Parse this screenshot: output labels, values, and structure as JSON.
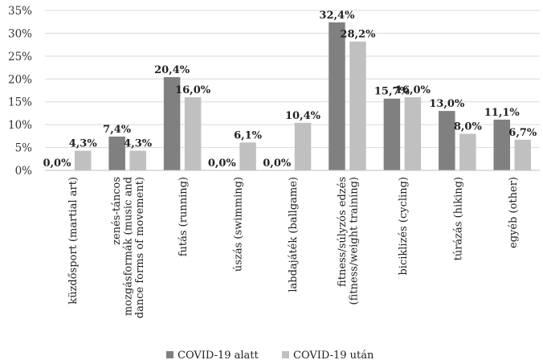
{
  "chart_data": {
    "type": "bar",
    "categories": [
      [
        "küzdősport (martial art)"
      ],
      [
        "zenés-táncos",
        "mozgásformák (music and",
        "dance forms of movement)"
      ],
      [
        "futás (running)"
      ],
      [
        "úszás (swimming)"
      ],
      [
        "labdajáték (ballgame)"
      ],
      [
        "fitness/súlyzós edzés",
        "(fitness/weight training)"
      ],
      [
        "biciklizés (cycling)"
      ],
      [
        "túrázás (hiking)"
      ],
      [
        "egyéb (other)"
      ]
    ],
    "series": [
      {
        "name": "COVID-19 alatt",
        "values": [
          0.0,
          7.4,
          20.4,
          0.0,
          0.0,
          32.4,
          15.7,
          13.0,
          11.1
        ],
        "labels": [
          "0,0%",
          "7,4%",
          "20,4%",
          "0,0%",
          "0,0%",
          "32,4%",
          "15,7%",
          "13,0%",
          "11,1%"
        ],
        "color": "#808080"
      },
      {
        "name": "COVID-19 után",
        "values": [
          4.3,
          4.3,
          16.0,
          6.1,
          10.4,
          28.2,
          16.0,
          8.0,
          6.7
        ],
        "labels": [
          "4,3%",
          "4,3%",
          "16,0%",
          "6,1%",
          "10,4%",
          "28,2%",
          "16,0%",
          "8,0%",
          "6,7%"
        ],
        "color": "#c0c0c0"
      }
    ],
    "ylim": [
      0,
      35
    ],
    "yticks": [
      "0%",
      "5%",
      "10%",
      "15%",
      "20%",
      "25%",
      "30%",
      "35%"
    ],
    "grid": true,
    "legend": "bottom"
  }
}
